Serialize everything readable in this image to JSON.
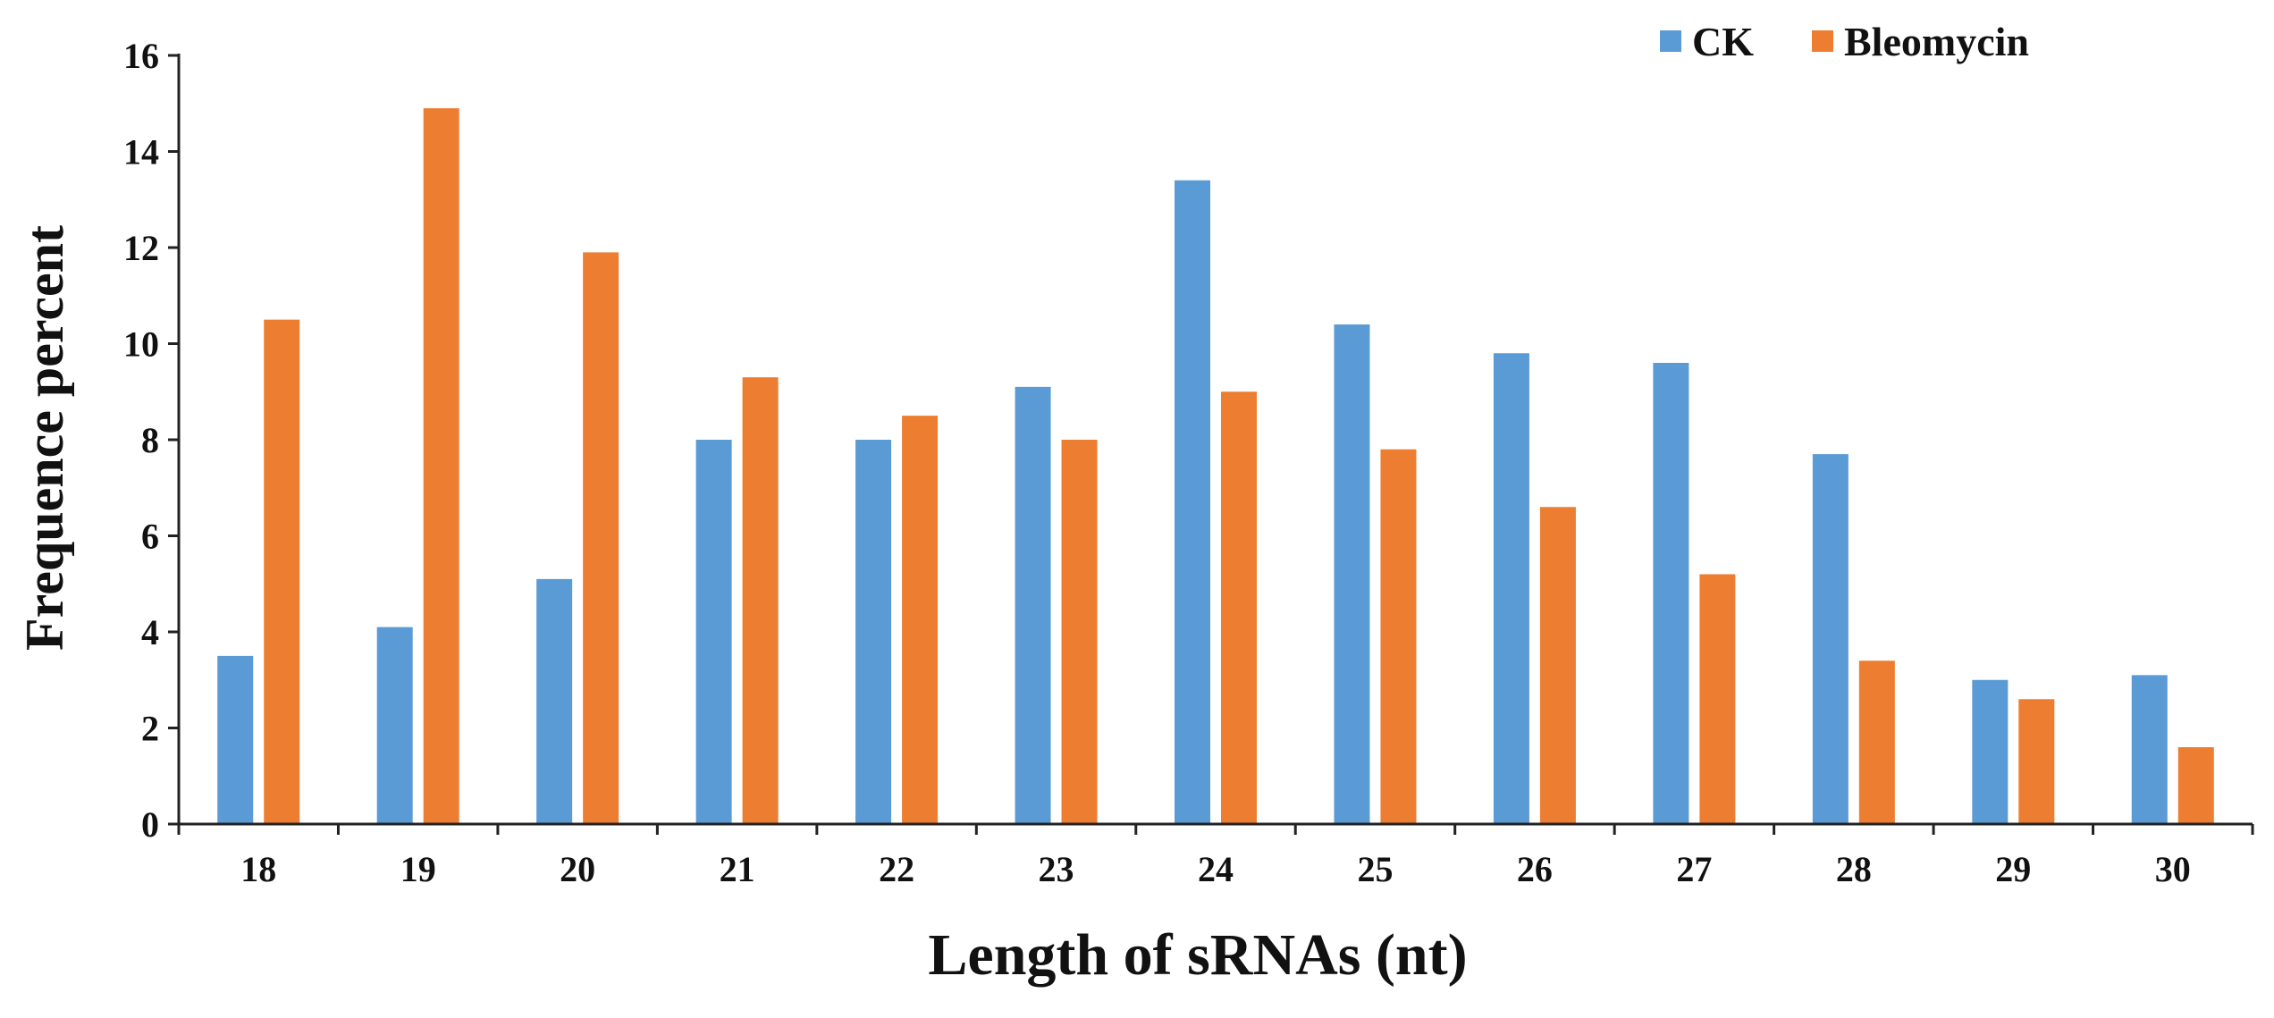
{
  "chart_data": {
    "type": "bar",
    "title": "",
    "xlabel": "Length of sRNAs (nt)",
    "ylabel": "Frequence percent",
    "categories": [
      "18",
      "19",
      "20",
      "21",
      "22",
      "23",
      "24",
      "25",
      "26",
      "27",
      "28",
      "29",
      "30"
    ],
    "series": [
      {
        "name": "CK",
        "color": "#5B9BD5",
        "values": [
          3.5,
          4.1,
          5.1,
          8.0,
          8.0,
          9.1,
          13.4,
          10.4,
          9.8,
          9.6,
          7.7,
          3.0,
          3.1
        ]
      },
      {
        "name": "Bleomycin",
        "color": "#ED7D31",
        "values": [
          10.5,
          14.9,
          11.9,
          9.3,
          8.5,
          8.0,
          9.0,
          7.8,
          6.6,
          5.2,
          3.4,
          2.6,
          1.6
        ]
      }
    ],
    "ylim": [
      0,
      16
    ],
    "yticks": [
      0,
      2,
      4,
      6,
      8,
      10,
      12,
      14,
      16
    ],
    "grid": false,
    "legend_position": "top-right"
  }
}
